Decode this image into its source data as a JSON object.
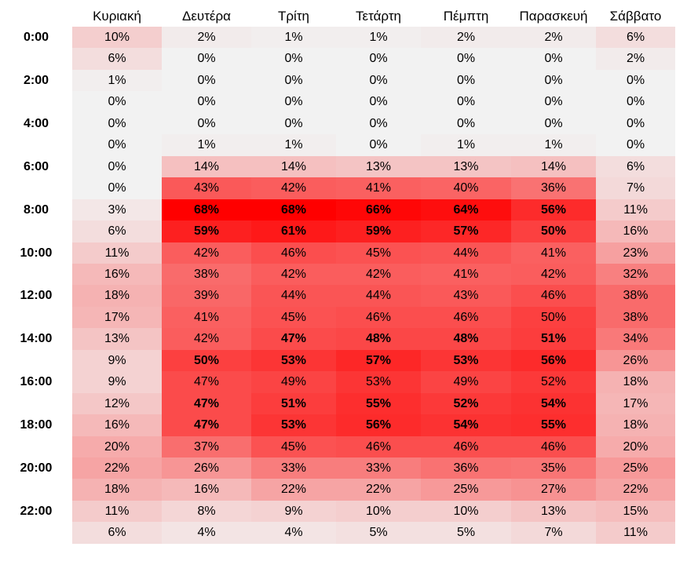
{
  "chart_data": {
    "type": "heatmap",
    "title": "",
    "xlabel": "",
    "ylabel": "",
    "columns": [
      "Κυριακή",
      "Δευτέρα",
      "Τρίτη",
      "Τετάρτη",
      "Πέμπτη",
      "Παρασκευή",
      "Σάββατο"
    ],
    "row_labels": [
      "0:00",
      "",
      "2:00",
      "",
      "4:00",
      "",
      "6:00",
      "",
      "8:00",
      "",
      "10:00",
      "",
      "12:00",
      "",
      "14:00",
      "",
      "16:00",
      "",
      "18:00",
      "",
      "20:00",
      "",
      "22:00",
      ""
    ],
    "unit": "%",
    "values": [
      [
        10,
        2,
        1,
        1,
        2,
        2,
        6
      ],
      [
        6,
        0,
        0,
        0,
        0,
        0,
        2
      ],
      [
        1,
        0,
        0,
        0,
        0,
        0,
        0
      ],
      [
        0,
        0,
        0,
        0,
        0,
        0,
        0
      ],
      [
        0,
        0,
        0,
        0,
        0,
        0,
        0
      ],
      [
        0,
        1,
        1,
        0,
        1,
        1,
        0
      ],
      [
        0,
        14,
        14,
        13,
        13,
        14,
        6
      ],
      [
        0,
        43,
        42,
        41,
        40,
        36,
        7
      ],
      [
        3,
        68,
        68,
        66,
        64,
        56,
        11
      ],
      [
        6,
        59,
        61,
        59,
        57,
        50,
        16
      ],
      [
        11,
        42,
        46,
        45,
        44,
        41,
        23
      ],
      [
        16,
        38,
        42,
        42,
        41,
        42,
        32
      ],
      [
        18,
        39,
        44,
        44,
        43,
        46,
        38
      ],
      [
        17,
        41,
        45,
        46,
        46,
        50,
        38
      ],
      [
        13,
        42,
        47,
        48,
        48,
        51,
        34
      ],
      [
        9,
        50,
        53,
        57,
        53,
        56,
        26
      ],
      [
        9,
        47,
        49,
        53,
        49,
        52,
        18
      ],
      [
        12,
        47,
        51,
        55,
        52,
        54,
        17
      ],
      [
        16,
        47,
        53,
        56,
        54,
        55,
        18
      ],
      [
        20,
        37,
        45,
        46,
        46,
        46,
        20
      ],
      [
        22,
        26,
        33,
        33,
        36,
        35,
        25
      ],
      [
        18,
        16,
        22,
        22,
        25,
        27,
        22
      ],
      [
        11,
        8,
        9,
        10,
        10,
        13,
        15
      ],
      [
        6,
        4,
        4,
        5,
        5,
        7,
        11
      ]
    ],
    "bold": [
      [
        false,
        false,
        false,
        false,
        false,
        false,
        false
      ],
      [
        false,
        false,
        false,
        false,
        false,
        false,
        false
      ],
      [
        false,
        false,
        false,
        false,
        false,
        false,
        false
      ],
      [
        false,
        false,
        false,
        false,
        false,
        false,
        false
      ],
      [
        false,
        false,
        false,
        false,
        false,
        false,
        false
      ],
      [
        false,
        false,
        false,
        false,
        false,
        false,
        false
      ],
      [
        false,
        false,
        false,
        false,
        false,
        false,
        false
      ],
      [
        false,
        false,
        false,
        false,
        false,
        false,
        false
      ],
      [
        false,
        true,
        true,
        true,
        true,
        true,
        false
      ],
      [
        false,
        true,
        true,
        true,
        true,
        true,
        false
      ],
      [
        false,
        false,
        false,
        false,
        false,
        false,
        false
      ],
      [
        false,
        false,
        false,
        false,
        false,
        false,
        false
      ],
      [
        false,
        false,
        false,
        false,
        false,
        false,
        false
      ],
      [
        false,
        false,
        false,
        false,
        false,
        false,
        false
      ],
      [
        false,
        false,
        true,
        true,
        true,
        true,
        false
      ],
      [
        false,
        true,
        true,
        true,
        true,
        true,
        false
      ],
      [
        false,
        false,
        false,
        false,
        false,
        false,
        false
      ],
      [
        false,
        true,
        true,
        true,
        true,
        true,
        false
      ],
      [
        false,
        true,
        true,
        true,
        true,
        true,
        false
      ],
      [
        false,
        false,
        false,
        false,
        false,
        false,
        false
      ],
      [
        false,
        false,
        false,
        false,
        false,
        false,
        false
      ],
      [
        false,
        false,
        false,
        false,
        false,
        false,
        false
      ],
      [
        false,
        false,
        false,
        false,
        false,
        false,
        false
      ],
      [
        false,
        false,
        false,
        false,
        false,
        false,
        false
      ]
    ],
    "color_scale": {
      "low": "#f2f2f2",
      "high": "#ff0000"
    },
    "grid": false,
    "legend": "none"
  }
}
